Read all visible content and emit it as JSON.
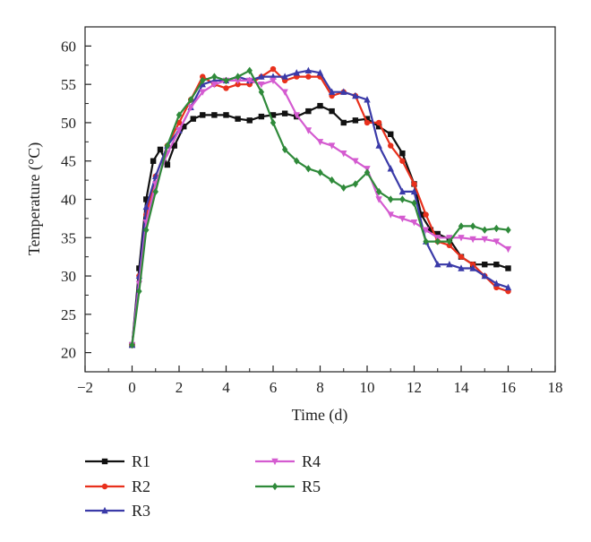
{
  "chart_data": {
    "type": "line",
    "xlabel": "Time (d)",
    "ylabel": "Temperature (°C)",
    "xlim": [
      -2,
      18
    ],
    "ylim": [
      17.5,
      62.5
    ],
    "x_ticks": [
      -2,
      0,
      2,
      4,
      6,
      8,
      10,
      12,
      14,
      16,
      18
    ],
    "y_ticks": [
      20,
      25,
      30,
      35,
      40,
      45,
      50,
      55,
      60
    ],
    "legend_position": "bottom",
    "series": [
      {
        "name": "R1",
        "color": "#111111",
        "marker": "square",
        "points": [
          [
            0,
            21
          ],
          [
            0.3,
            31
          ],
          [
            0.6,
            40
          ],
          [
            0.9,
            45
          ],
          [
            1.2,
            46.5
          ],
          [
            1.5,
            44.5
          ],
          [
            1.8,
            47
          ],
          [
            2.2,
            49.5
          ],
          [
            2.6,
            50.5
          ],
          [
            3,
            51
          ],
          [
            3.5,
            51
          ],
          [
            4,
            51
          ],
          [
            4.5,
            50.5
          ],
          [
            5,
            50.3
          ],
          [
            5.5,
            50.8
          ],
          [
            6,
            51
          ],
          [
            6.5,
            51.2
          ],
          [
            7,
            50.8
          ],
          [
            7.5,
            51.5
          ],
          [
            8,
            52.2
          ],
          [
            8.5,
            51.5
          ],
          [
            9,
            50
          ],
          [
            9.5,
            50.3
          ],
          [
            10,
            50.5
          ],
          [
            10.5,
            49.5
          ],
          [
            11,
            48.5
          ],
          [
            11.5,
            46
          ],
          [
            12,
            42
          ],
          [
            12.3,
            38
          ],
          [
            12.7,
            36
          ],
          [
            13,
            35.5
          ],
          [
            13.5,
            34.8
          ],
          [
            14,
            32.5
          ],
          [
            14.5,
            31.5
          ],
          [
            15,
            31.5
          ],
          [
            15.5,
            31.5
          ],
          [
            16,
            31
          ]
        ]
      },
      {
        "name": "R2",
        "color": "#e8301c",
        "marker": "circle",
        "points": [
          [
            0,
            21
          ],
          [
            0.3,
            30
          ],
          [
            0.6,
            38
          ],
          [
            1,
            43
          ],
          [
            1.5,
            47
          ],
          [
            2,
            50
          ],
          [
            2.5,
            53
          ],
          [
            3,
            56
          ],
          [
            3.5,
            55
          ],
          [
            4,
            54.5
          ],
          [
            4.5,
            55
          ],
          [
            5,
            55
          ],
          [
            5.5,
            56
          ],
          [
            6,
            57
          ],
          [
            6.5,
            55.5
          ],
          [
            7,
            56
          ],
          [
            7.5,
            56
          ],
          [
            8,
            56
          ],
          [
            8.5,
            53.5
          ],
          [
            9,
            54
          ],
          [
            9.5,
            53.5
          ],
          [
            10,
            50
          ],
          [
            10.5,
            50
          ],
          [
            11,
            47
          ],
          [
            11.5,
            45
          ],
          [
            12,
            42
          ],
          [
            12.5,
            38
          ],
          [
            13,
            34.5
          ],
          [
            13.5,
            34
          ],
          [
            14,
            32.5
          ],
          [
            14.5,
            31.5
          ],
          [
            15,
            30
          ],
          [
            15.5,
            28.5
          ],
          [
            16,
            28
          ]
        ]
      },
      {
        "name": "R3",
        "color": "#3a3aa8",
        "marker": "triangle-up",
        "points": [
          [
            0,
            21
          ],
          [
            0.3,
            30
          ],
          [
            0.6,
            39
          ],
          [
            1,
            43
          ],
          [
            1.5,
            47
          ],
          [
            2,
            49
          ],
          [
            2.5,
            52
          ],
          [
            3,
            55
          ],
          [
            3.5,
            55.5
          ],
          [
            4,
            55.5
          ],
          [
            4.5,
            56
          ],
          [
            5,
            55.5
          ],
          [
            5.5,
            56
          ],
          [
            6,
            56
          ],
          [
            6.5,
            56
          ],
          [
            7,
            56.5
          ],
          [
            7.5,
            56.8
          ],
          [
            8,
            56.5
          ],
          [
            8.5,
            54
          ],
          [
            9,
            54
          ],
          [
            9.5,
            53.5
          ],
          [
            10,
            53
          ],
          [
            10.5,
            47
          ],
          [
            11,
            44
          ],
          [
            11.5,
            41
          ],
          [
            12,
            41
          ],
          [
            12.5,
            34.5
          ],
          [
            13,
            31.5
          ],
          [
            13.5,
            31.5
          ],
          [
            14,
            31
          ],
          [
            14.5,
            31
          ],
          [
            15,
            30
          ],
          [
            15.5,
            29
          ],
          [
            16,
            28.5
          ]
        ]
      },
      {
        "name": "R4",
        "color": "#d45bd0",
        "marker": "triangle-down",
        "points": [
          [
            0,
            21
          ],
          [
            0.3,
            29
          ],
          [
            0.6,
            37
          ],
          [
            1,
            42
          ],
          [
            1.5,
            46
          ],
          [
            2,
            49
          ],
          [
            2.5,
            52
          ],
          [
            3,
            54
          ],
          [
            3.5,
            55
          ],
          [
            4,
            55.5
          ],
          [
            4.5,
            55.5
          ],
          [
            5,
            55.5
          ],
          [
            5.5,
            55
          ],
          [
            6,
            55.5
          ],
          [
            6.5,
            54
          ],
          [
            7,
            51
          ],
          [
            7.5,
            49
          ],
          [
            8,
            47.5
          ],
          [
            8.5,
            47
          ],
          [
            9,
            46
          ],
          [
            9.5,
            45
          ],
          [
            10,
            44
          ],
          [
            10.5,
            40
          ],
          [
            11,
            38
          ],
          [
            11.5,
            37.5
          ],
          [
            12,
            37
          ],
          [
            12.5,
            36
          ],
          [
            13,
            35
          ],
          [
            13.5,
            35
          ],
          [
            14,
            35
          ],
          [
            14.5,
            34.8
          ],
          [
            15,
            34.8
          ],
          [
            15.5,
            34.5
          ],
          [
            16,
            33.5
          ]
        ]
      },
      {
        "name": "R5",
        "color": "#2f8a3a",
        "marker": "diamond",
        "points": [
          [
            0,
            21
          ],
          [
            0.3,
            28
          ],
          [
            0.6,
            36
          ],
          [
            1,
            41
          ],
          [
            1.5,
            47
          ],
          [
            2,
            51
          ],
          [
            2.5,
            53
          ],
          [
            3,
            55.5
          ],
          [
            3.5,
            56
          ],
          [
            4,
            55.5
          ],
          [
            4.5,
            56
          ],
          [
            5,
            56.8
          ],
          [
            5.5,
            54
          ],
          [
            6,
            50
          ],
          [
            6.5,
            46.5
          ],
          [
            7,
            45
          ],
          [
            7.5,
            44
          ],
          [
            8,
            43.5
          ],
          [
            8.5,
            42.5
          ],
          [
            9,
            41.5
          ],
          [
            9.5,
            42
          ],
          [
            10,
            43.5
          ],
          [
            10.5,
            41
          ],
          [
            11,
            40
          ],
          [
            11.5,
            40
          ],
          [
            12,
            39.5
          ],
          [
            12.5,
            34.5
          ],
          [
            13,
            34.5
          ],
          [
            13.5,
            34.5
          ],
          [
            14,
            36.5
          ],
          [
            14.5,
            36.5
          ],
          [
            15,
            36
          ],
          [
            15.5,
            36.2
          ],
          [
            16,
            36
          ]
        ]
      }
    ]
  }
}
